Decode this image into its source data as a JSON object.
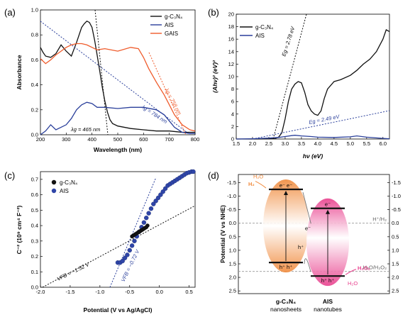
{
  "colors": {
    "black": "#111111",
    "blue": "#2a3f9b",
    "orange": "#ef5b2b",
    "ais_marker": "#2f45a8",
    "cb_orange": "#f08a3c",
    "pink": "#e83e8c",
    "grid_gray": "#999999"
  },
  "chart_data": [
    {
      "type": "line",
      "panel": "(a)",
      "xlabel": "Wavelength (nm)",
      "ylabel": "Absorbance",
      "xlim": [
        200,
        800
      ],
      "ylim": [
        0,
        1.0
      ],
      "xticks": [
        200,
        300,
        400,
        500,
        600,
        700,
        800
      ],
      "yticks": [
        0.0,
        0.2,
        0.4,
        0.6,
        0.8,
        1.0
      ],
      "legend": [
        "g-C₃N₄",
        "AIS",
        "GAIS"
      ],
      "legend_position": "top-right",
      "series": [
        {
          "name": "g-C₃N₄",
          "color": "black",
          "x": [
            200,
            210,
            220,
            240,
            260,
            280,
            300,
            320,
            340,
            360,
            370,
            380,
            390,
            400,
            410,
            420,
            430,
            440,
            450,
            460,
            470,
            480,
            500,
            550,
            600,
            650,
            700,
            750,
            800
          ],
          "y": [
            0.7,
            0.66,
            0.63,
            0.62,
            0.65,
            0.72,
            0.67,
            0.63,
            0.74,
            0.86,
            0.89,
            0.91,
            0.9,
            0.86,
            0.76,
            0.64,
            0.51,
            0.38,
            0.27,
            0.18,
            0.12,
            0.09,
            0.07,
            0.05,
            0.04,
            0.03,
            0.03,
            0.02,
            0.02
          ]
        },
        {
          "name": "AIS",
          "color": "blue",
          "x": [
            200,
            220,
            240,
            260,
            280,
            300,
            320,
            340,
            360,
            380,
            400,
            420,
            450,
            500,
            550,
            600,
            650,
            680,
            700,
            720,
            750,
            780,
            800
          ],
          "y": [
            0.0,
            0.03,
            0.08,
            0.04,
            0.06,
            0.08,
            0.13,
            0.2,
            0.24,
            0.26,
            0.25,
            0.22,
            0.22,
            0.21,
            0.22,
            0.22,
            0.2,
            0.16,
            0.11,
            0.06,
            0.02,
            0.01,
            0.01
          ]
        },
        {
          "name": "GAIS",
          "color": "orange",
          "x": [
            200,
            220,
            240,
            260,
            280,
            300,
            320,
            340,
            360,
            380,
            400,
            420,
            450,
            500,
            550,
            580,
            600,
            620,
            650,
            680,
            700,
            720,
            750,
            780,
            800
          ],
          "y": [
            0.61,
            0.57,
            0.6,
            0.64,
            0.67,
            0.7,
            0.72,
            0.73,
            0.73,
            0.72,
            0.7,
            0.68,
            0.69,
            0.67,
            0.7,
            0.69,
            0.62,
            0.53,
            0.42,
            0.32,
            0.24,
            0.16,
            0.08,
            0.04,
            0.03
          ]
        }
      ],
      "annotations": [
        {
          "text": "λg = 465 nm",
          "color": "black"
        },
        {
          "text": "λg = 784 nm",
          "color": "blue"
        },
        {
          "text": "λg = 758 nm",
          "color": "orange"
        }
      ]
    },
    {
      "type": "line",
      "panel": "(b)",
      "xlabel": "hν (eV)",
      "ylabel": "(Ahν)² (eV)²",
      "xlim": [
        1.5,
        6.2
      ],
      "ylim": [
        0,
        20
      ],
      "xticks": [
        1.5,
        2.0,
        2.5,
        3.0,
        3.5,
        4.0,
        4.5,
        5.0,
        5.5,
        6.0
      ],
      "yticks": [
        0,
        2,
        4,
        6,
        8,
        10,
        12,
        14,
        16,
        18,
        20
      ],
      "legend": [
        "g-C₃N₄",
        "AIS"
      ],
      "legend_position": "top-left",
      "series": [
        {
          "name": "g-C₃N₄",
          "color": "black",
          "x": [
            1.5,
            2.0,
            2.5,
            2.7,
            2.8,
            2.9,
            3.0,
            3.1,
            3.2,
            3.3,
            3.4,
            3.5,
            3.6,
            3.7,
            3.8,
            3.9,
            4.0,
            4.1,
            4.2,
            4.3,
            4.5,
            4.7,
            5.0,
            5.2,
            5.4,
            5.6,
            5.8,
            6.0,
            6.1,
            6.2
          ],
          "y": [
            0,
            0,
            0.02,
            0.1,
            0.3,
            1.0,
            3.2,
            6.0,
            8.0,
            8.8,
            9.2,
            9.0,
            7.5,
            5.5,
            4.5,
            4.0,
            3.8,
            4.5,
            6.5,
            8.0,
            9.2,
            9.5,
            10.2,
            11.0,
            12.0,
            12.8,
            14.0,
            16.0,
            17.5,
            17.2
          ]
        },
        {
          "name": "AIS",
          "color": "blue",
          "x": [
            1.5,
            2.0,
            2.5,
            2.8,
            3.0,
            3.2,
            3.3,
            3.5,
            3.8,
            4.0,
            4.5,
            5.0,
            5.2,
            5.5,
            6.0,
            6.2
          ],
          "y": [
            0,
            0.05,
            0.15,
            0.25,
            0.4,
            0.55,
            0.6,
            0.5,
            0.4,
            0.3,
            0.25,
            0.35,
            0.5,
            0.3,
            0.1,
            0.05
          ]
        }
      ],
      "annotations": [
        {
          "text": "Eg = 2.78 eV",
          "color": "black"
        },
        {
          "text": "Eg = 2.49 eV",
          "color": "blue"
        }
      ]
    },
    {
      "type": "scatter",
      "panel": "(c)",
      "xlabel": "Potential (V vs Ag/AgCl)",
      "ylabel": "C⁻² (10⁹ cm⁴ F⁻²)",
      "xlim": [
        -2.0,
        0.6
      ],
      "ylim": [
        0,
        0.75
      ],
      "xticks": [
        -2.0,
        -1.5,
        -1.0,
        -0.5,
        0.0,
        0.5
      ],
      "yticks": [
        0.0,
        0.1,
        0.2,
        0.3,
        0.4,
        0.5,
        0.6,
        0.7
      ],
      "legend": [
        "g-C₃N₄",
        "AIS"
      ],
      "legend_position": "top-left",
      "series": [
        {
          "name": "g-C₃N₄",
          "color": "black",
          "x": [
            -0.46,
            -0.44,
            -0.42,
            -0.4,
            -0.38,
            -0.36,
            -0.34,
            -0.32,
            -0.3,
            -0.28,
            -0.26,
            -0.24,
            -0.22,
            -0.2
          ],
          "y": [
            0.33,
            0.335,
            0.34,
            0.345,
            0.35,
            0.355,
            0.36,
            0.365,
            0.37,
            0.375,
            0.38,
            0.385,
            0.39,
            0.4
          ]
        },
        {
          "name": "AIS",
          "color": "ais_marker",
          "x": [
            -0.7,
            -0.66,
            -0.62,
            -0.58,
            -0.54,
            -0.5,
            -0.46,
            -0.42,
            -0.38,
            -0.34,
            -0.3,
            -0.26,
            -0.22,
            -0.18,
            -0.14,
            -0.1,
            -0.06,
            -0.02,
            0.02,
            0.06,
            0.1,
            0.14,
            0.18,
            0.22,
            0.26,
            0.3,
            0.34,
            0.38,
            0.42,
            0.46,
            0.5,
            0.54,
            0.57
          ],
          "y": [
            0.16,
            0.16,
            0.17,
            0.19,
            0.21,
            0.24,
            0.27,
            0.3,
            0.33,
            0.36,
            0.39,
            0.42,
            0.45,
            0.48,
            0.51,
            0.54,
            0.56,
            0.58,
            0.6,
            0.62,
            0.64,
            0.66,
            0.67,
            0.68,
            0.69,
            0.7,
            0.71,
            0.72,
            0.73,
            0.74,
            0.745,
            0.75,
            0.75
          ]
        }
      ],
      "annotations": [
        {
          "text": "VFB = −1.52 V",
          "color": "black"
        },
        {
          "text": "VFB = −0.72 V",
          "color": "blue"
        }
      ]
    }
  ],
  "panels": {
    "a_letter": "(a)",
    "b_letter": "(b)",
    "c_letter": "(c)",
    "d_letter": "(d)"
  },
  "band_diagram": {
    "ylabel": "Potential (V vs NHE)",
    "ylim": [
      -1.8,
      2.6
    ],
    "yticks": [
      "-1.5",
      "-1.0",
      "-0.5",
      "0.0",
      "0.5",
      "1.0",
      "1.5",
      "2.0",
      "2.5"
    ],
    "ytick_values": [
      -1.5,
      -1.0,
      -0.5,
      0.0,
      0.5,
      1.0,
      1.5,
      2.0,
      2.5
    ],
    "ref_lines": [
      {
        "label": "H⁺/H₂",
        "value": 0.0
      },
      {
        "label": "H₂O/H₂O₂",
        "value": 1.78
      }
    ],
    "gcn": {
      "cb": -1.25,
      "vb": 1.45,
      "cb_label": "e⁻ e⁻",
      "vb_label": "h⁺ h⁺",
      "name": "g-C₃N₄",
      "sub": "nanosheets"
    },
    "ais": {
      "cb": -0.55,
      "vb": 1.95,
      "cb_label": "e⁻",
      "vb_label": "h⁺ h⁺",
      "name": "AIS",
      "sub": "nanotubes"
    },
    "labels": {
      "h2o_top": "H₂O",
      "h2_top": "H₂",
      "h2o2_right": "H₂O₂",
      "h2o_bottom": "H₂O",
      "e_mid": "e⁻",
      "h_mid": "h⁺"
    }
  }
}
